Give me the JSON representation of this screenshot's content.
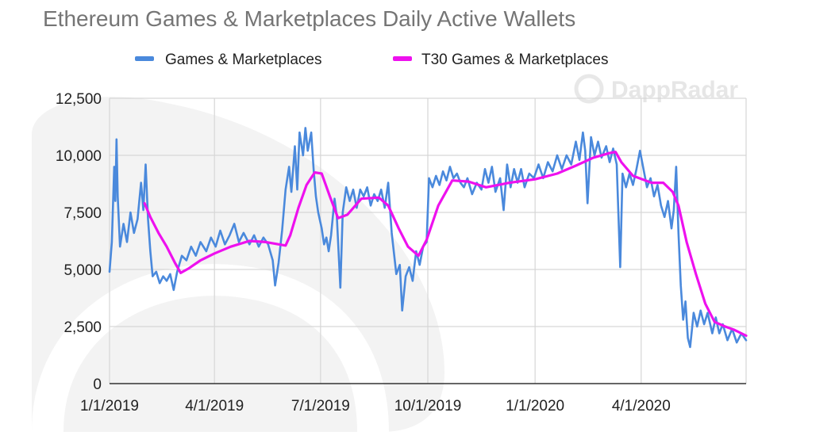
{
  "chart_data": {
    "type": "line",
    "title": "Ethereum Games & Marketplaces Daily Active Wallets",
    "watermark": "DappRadar",
    "legend": "top",
    "grid": true,
    "xlim": [
      "2019-01-01",
      "2020-06-30"
    ],
    "ylim": [
      0,
      12500
    ],
    "y_ticks": [
      0,
      2500,
      5000,
      7500,
      10000,
      12500
    ],
    "y_tick_labels": [
      "0",
      "2,500",
      "5,000",
      "7,500",
      "10,000",
      "12,500"
    ],
    "x_ticks": [
      "2019-01-01",
      "2019-04-01",
      "2019-07-01",
      "2019-10-01",
      "2020-01-01",
      "2020-04-01"
    ],
    "x_tick_labels": [
      "1/1/2019",
      "4/1/2019",
      "7/1/2019",
      "10/1/2019",
      "1/1/2020",
      "4/1/2020"
    ],
    "colors": {
      "series0": "#4a89dc",
      "series1": "#ee11ee",
      "grid": "#d6d6d6",
      "axis": "#333333",
      "watermark": "#f0f0f0"
    },
    "series": [
      {
        "name": "Games & Marketplaces",
        "points": [
          [
            "2019-01-01",
            4900
          ],
          [
            "2019-01-03",
            6200
          ],
          [
            "2019-01-05",
            9500
          ],
          [
            "2019-01-06",
            8000
          ],
          [
            "2019-01-07",
            10700
          ],
          [
            "2019-01-08",
            8200
          ],
          [
            "2019-01-10",
            6000
          ],
          [
            "2019-01-13",
            7000
          ],
          [
            "2019-01-16",
            6200
          ],
          [
            "2019-01-19",
            7500
          ],
          [
            "2019-01-22",
            6600
          ],
          [
            "2019-01-25",
            7200
          ],
          [
            "2019-01-28",
            8800
          ],
          [
            "2019-01-30",
            7600
          ],
          [
            "2019-02-01",
            9600
          ],
          [
            "2019-02-03",
            7200
          ],
          [
            "2019-02-05",
            5800
          ],
          [
            "2019-02-07",
            4700
          ],
          [
            "2019-02-10",
            4900
          ],
          [
            "2019-02-13",
            4400
          ],
          [
            "2019-02-16",
            4700
          ],
          [
            "2019-02-19",
            4500
          ],
          [
            "2019-02-22",
            4800
          ],
          [
            "2019-02-25",
            4100
          ],
          [
            "2019-02-28",
            4900
          ],
          [
            "2019-03-04",
            5600
          ],
          [
            "2019-03-08",
            5400
          ],
          [
            "2019-03-12",
            6000
          ],
          [
            "2019-03-16",
            5600
          ],
          [
            "2019-03-20",
            6200
          ],
          [
            "2019-03-25",
            5800
          ],
          [
            "2019-03-29",
            6400
          ],
          [
            "2019-04-02",
            6000
          ],
          [
            "2019-04-06",
            6700
          ],
          [
            "2019-04-10",
            6100
          ],
          [
            "2019-04-14",
            6500
          ],
          [
            "2019-04-18",
            7000
          ],
          [
            "2019-04-22",
            6200
          ],
          [
            "2019-04-26",
            6600
          ],
          [
            "2019-05-01",
            6100
          ],
          [
            "2019-05-05",
            6500
          ],
          [
            "2019-05-09",
            6000
          ],
          [
            "2019-05-13",
            6400
          ],
          [
            "2019-05-17",
            6100
          ],
          [
            "2019-05-21",
            5400
          ],
          [
            "2019-05-23",
            4300
          ],
          [
            "2019-05-26",
            5300
          ],
          [
            "2019-05-29",
            6700
          ],
          [
            "2019-06-01",
            8500
          ],
          [
            "2019-06-04",
            9500
          ],
          [
            "2019-06-06",
            8400
          ],
          [
            "2019-06-09",
            10400
          ],
          [
            "2019-06-11",
            8500
          ],
          [
            "2019-06-13",
            11000
          ],
          [
            "2019-06-16",
            10000
          ],
          [
            "2019-06-18",
            11200
          ],
          [
            "2019-06-20",
            10200
          ],
          [
            "2019-06-23",
            11000
          ],
          [
            "2019-06-25",
            9400
          ],
          [
            "2019-06-27",
            8200
          ],
          [
            "2019-06-29",
            7500
          ],
          [
            "2019-07-02",
            6800
          ],
          [
            "2019-07-04",
            6100
          ],
          [
            "2019-07-06",
            6400
          ],
          [
            "2019-07-08",
            5800
          ],
          [
            "2019-07-10",
            6500
          ],
          [
            "2019-07-13",
            8100
          ],
          [
            "2019-07-15",
            7300
          ],
          [
            "2019-07-18",
            4200
          ],
          [
            "2019-07-20",
            7500
          ],
          [
            "2019-07-23",
            8600
          ],
          [
            "2019-07-26",
            8000
          ],
          [
            "2019-07-29",
            8500
          ],
          [
            "2019-08-01",
            7700
          ],
          [
            "2019-08-04",
            8500
          ],
          [
            "2019-08-07",
            8200
          ],
          [
            "2019-08-10",
            8600
          ],
          [
            "2019-08-13",
            7800
          ],
          [
            "2019-08-16",
            8300
          ],
          [
            "2019-08-19",
            8000
          ],
          [
            "2019-08-22",
            8500
          ],
          [
            "2019-08-25",
            7700
          ],
          [
            "2019-08-28",
            8800
          ],
          [
            "2019-08-31",
            6600
          ],
          [
            "2019-09-02",
            5700
          ],
          [
            "2019-09-04",
            4800
          ],
          [
            "2019-09-07",
            5200
          ],
          [
            "2019-09-09",
            3200
          ],
          [
            "2019-09-12",
            4700
          ],
          [
            "2019-09-15",
            5100
          ],
          [
            "2019-09-18",
            4500
          ],
          [
            "2019-09-21",
            5800
          ],
          [
            "2019-09-24",
            5200
          ],
          [
            "2019-09-27",
            6000
          ],
          [
            "2019-09-30",
            6200
          ],
          [
            "2019-10-02",
            9000
          ],
          [
            "2019-10-05",
            8600
          ],
          [
            "2019-10-08",
            9100
          ],
          [
            "2019-10-11",
            8700
          ],
          [
            "2019-10-14",
            9300
          ],
          [
            "2019-10-17",
            8900
          ],
          [
            "2019-10-20",
            9500
          ],
          [
            "2019-10-23",
            9000
          ],
          [
            "2019-10-26",
            9200
          ],
          [
            "2019-10-29",
            8800
          ],
          [
            "2019-11-01",
            8600
          ],
          [
            "2019-11-04",
            9000
          ],
          [
            "2019-11-08",
            8300
          ],
          [
            "2019-11-12",
            8800
          ],
          [
            "2019-11-16",
            8500
          ],
          [
            "2019-11-19",
            9400
          ],
          [
            "2019-11-22",
            8800
          ],
          [
            "2019-11-25",
            9500
          ],
          [
            "2019-11-28",
            8400
          ],
          [
            "2019-12-02",
            9000
          ],
          [
            "2019-12-05",
            7600
          ],
          [
            "2019-12-08",
            9600
          ],
          [
            "2019-12-11",
            8600
          ],
          [
            "2019-12-14",
            9400
          ],
          [
            "2019-12-17",
            8800
          ],
          [
            "2019-12-20",
            9400
          ],
          [
            "2019-12-23",
            8600
          ],
          [
            "2019-12-27",
            9200
          ],
          [
            "2019-12-31",
            9000
          ],
          [
            "2020-01-04",
            9600
          ],
          [
            "2020-01-08",
            9000
          ],
          [
            "2020-01-12",
            9700
          ],
          [
            "2020-01-16",
            9300
          ],
          [
            "2020-01-20",
            10000
          ],
          [
            "2020-01-24",
            9400
          ],
          [
            "2020-01-28",
            10000
          ],
          [
            "2020-02-01",
            9600
          ],
          [
            "2020-02-05",
            10600
          ],
          [
            "2020-02-08",
            9800
          ],
          [
            "2020-02-11",
            11000
          ],
          [
            "2020-02-13",
            10200
          ],
          [
            "2020-02-15",
            7900
          ],
          [
            "2020-02-18",
            10800
          ],
          [
            "2020-02-21",
            10000
          ],
          [
            "2020-02-24",
            10600
          ],
          [
            "2020-02-27",
            9900
          ],
          [
            "2020-03-02",
            10400
          ],
          [
            "2020-03-05",
            9700
          ],
          [
            "2020-03-08",
            10300
          ],
          [
            "2020-03-11",
            9600
          ],
          [
            "2020-03-14",
            5100
          ],
          [
            "2020-03-16",
            9200
          ],
          [
            "2020-03-19",
            8600
          ],
          [
            "2020-03-22",
            9200
          ],
          [
            "2020-03-25",
            8700
          ],
          [
            "2020-03-28",
            9400
          ],
          [
            "2020-03-31",
            10200
          ],
          [
            "2020-04-03",
            9400
          ],
          [
            "2020-04-06",
            8600
          ],
          [
            "2020-04-09",
            9000
          ],
          [
            "2020-04-12",
            8200
          ],
          [
            "2020-04-15",
            8700
          ],
          [
            "2020-04-18",
            7800
          ],
          [
            "2020-04-21",
            7300
          ],
          [
            "2020-04-24",
            8000
          ],
          [
            "2020-04-27",
            6800
          ],
          [
            "2020-04-29",
            7600
          ],
          [
            "2020-05-01",
            9500
          ],
          [
            "2020-05-03",
            6600
          ],
          [
            "2020-05-05",
            4300
          ],
          [
            "2020-05-07",
            2800
          ],
          [
            "2020-05-09",
            3600
          ],
          [
            "2020-05-11",
            2000
          ],
          [
            "2020-05-13",
            1600
          ],
          [
            "2020-05-16",
            3100
          ],
          [
            "2020-05-19",
            2500
          ],
          [
            "2020-05-22",
            3200
          ],
          [
            "2020-05-25",
            2600
          ],
          [
            "2020-05-28",
            3100
          ],
          [
            "2020-06-01",
            2200
          ],
          [
            "2020-06-04",
            2900
          ],
          [
            "2020-06-07",
            2200
          ],
          [
            "2020-06-10",
            2600
          ],
          [
            "2020-06-14",
            1900
          ],
          [
            "2020-06-18",
            2400
          ],
          [
            "2020-06-22",
            1800
          ],
          [
            "2020-06-26",
            2200
          ],
          [
            "2020-06-30",
            1900
          ]
        ]
      },
      {
        "name": "T30 Games & Marketplaces",
        "points": [
          [
            "2019-01-31",
            7900
          ],
          [
            "2019-02-05",
            7300
          ],
          [
            "2019-02-12",
            6600
          ],
          [
            "2019-02-19",
            6000
          ],
          [
            "2019-02-26",
            5300
          ],
          [
            "2019-03-03",
            4850
          ],
          [
            "2019-03-10",
            5050
          ],
          [
            "2019-03-20",
            5400
          ],
          [
            "2019-04-01",
            5700
          ],
          [
            "2019-04-15",
            6000
          ],
          [
            "2019-05-01",
            6250
          ],
          [
            "2019-05-15",
            6200
          ],
          [
            "2019-06-01",
            6050
          ],
          [
            "2019-06-05",
            6500
          ],
          [
            "2019-06-12",
            7700
          ],
          [
            "2019-06-19",
            8700
          ],
          [
            "2019-06-26",
            9250
          ],
          [
            "2019-07-02",
            9200
          ],
          [
            "2019-07-09",
            8200
          ],
          [
            "2019-07-16",
            7250
          ],
          [
            "2019-07-24",
            7400
          ],
          [
            "2019-08-05",
            8100
          ],
          [
            "2019-08-20",
            8150
          ],
          [
            "2019-08-28",
            7800
          ],
          [
            "2019-09-06",
            6800
          ],
          [
            "2019-09-14",
            6000
          ],
          [
            "2019-09-23",
            5600
          ],
          [
            "2019-09-30",
            6300
          ],
          [
            "2019-10-10",
            7800
          ],
          [
            "2019-10-22",
            8900
          ],
          [
            "2019-11-05",
            8850
          ],
          [
            "2019-11-20",
            8600
          ],
          [
            "2019-12-10",
            8800
          ],
          [
            "2020-01-01",
            8950
          ],
          [
            "2020-01-20",
            9200
          ],
          [
            "2020-02-05",
            9550
          ],
          [
            "2020-02-20",
            9900
          ],
          [
            "2020-03-05",
            10100
          ],
          [
            "2020-03-10",
            10150
          ],
          [
            "2020-03-15",
            9700
          ],
          [
            "2020-03-25",
            9100
          ],
          [
            "2020-04-10",
            8800
          ],
          [
            "2020-04-20",
            8800
          ],
          [
            "2020-04-28",
            8400
          ],
          [
            "2020-05-03",
            7800
          ],
          [
            "2020-05-10",
            6200
          ],
          [
            "2020-05-18",
            4800
          ],
          [
            "2020-05-26",
            3500
          ],
          [
            "2020-06-03",
            2700
          ],
          [
            "2020-06-12",
            2500
          ],
          [
            "2020-06-20",
            2350
          ],
          [
            "2020-06-30",
            2100
          ]
        ]
      }
    ]
  }
}
